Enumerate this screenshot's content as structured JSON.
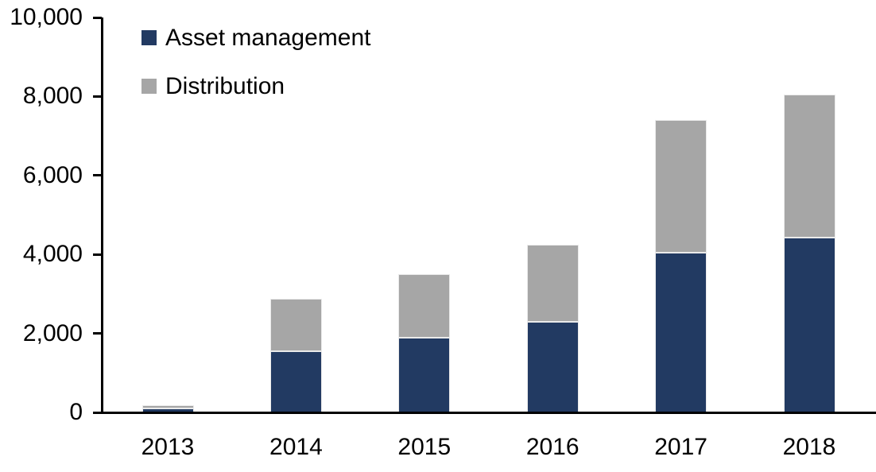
{
  "chart_data": {
    "type": "bar",
    "stacked": true,
    "title": "",
    "xlabel": "",
    "ylabel": "",
    "categories": [
      "2013",
      "2014",
      "2015",
      "2016",
      "2017",
      "2018"
    ],
    "series": [
      {
        "name": "Asset management",
        "color": "#223A62",
        "values": [
          100,
          1550,
          1890,
          2300,
          4040,
          4420
        ]
      },
      {
        "name": "Distribution",
        "color": "#A6A6A6",
        "values": [
          90,
          1320,
          1610,
          1950,
          3360,
          3620
        ]
      }
    ],
    "stack_totals": [
      190,
      2870,
      3500,
      4250,
      7400,
      8040
    ],
    "ylim": [
      0,
      10000
    ],
    "y_ticks": [
      {
        "value": 0,
        "label": "0"
      },
      {
        "value": 2000,
        "label": "2,000"
      },
      {
        "value": 4000,
        "label": "4,000"
      },
      {
        "value": 6000,
        "label": "6,000"
      },
      {
        "value": 8000,
        "label": "8,000"
      },
      {
        "value": 10000,
        "label": "10,000"
      }
    ],
    "grid": false,
    "legend_position": "top-left-inside",
    "axis_color": "#000000",
    "background_color": "#FFFFFF",
    "bar_border_color": "#EAEAEA"
  },
  "legend": {
    "items": [
      {
        "label": "Asset management",
        "color": "#223A62"
      },
      {
        "label": "Distribution",
        "color": "#A6A6A6"
      }
    ]
  }
}
